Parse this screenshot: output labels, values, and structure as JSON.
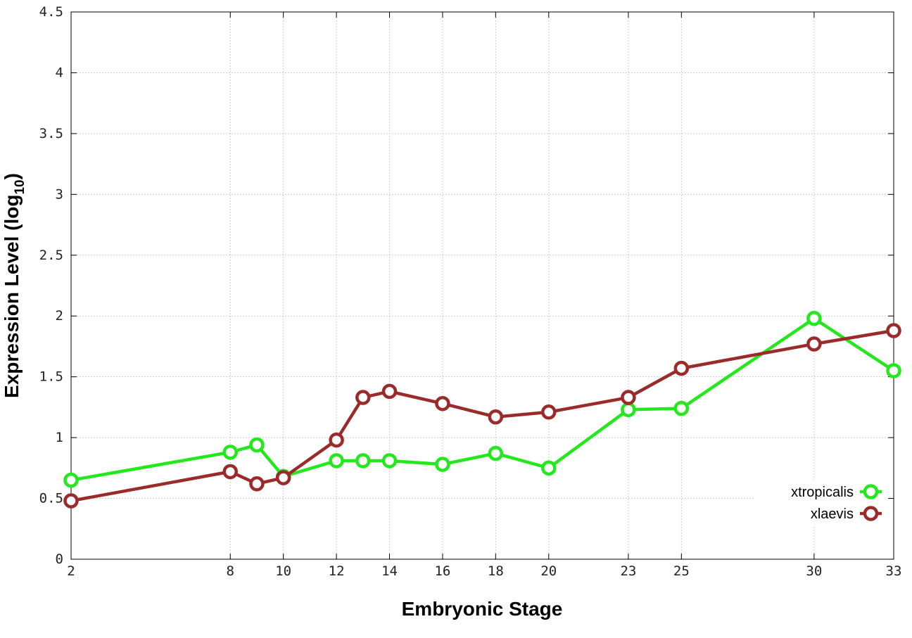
{
  "chart_data": {
    "type": "line",
    "xlabel": "Embryonic Stage",
    "ylabel_main": "Expression Level (log",
    "ylabel_sub": "10",
    "ylabel_close": ")",
    "xlim": [
      2,
      33
    ],
    "ylim": [
      0,
      4.5
    ],
    "x_ticks": [
      2,
      8,
      10,
      12,
      14,
      16,
      18,
      20,
      23,
      25,
      30,
      33
    ],
    "y_ticks": [
      {
        "value": 0,
        "label": "0"
      },
      {
        "value": 0.5,
        "label": "0.5"
      },
      {
        "value": 1,
        "label": "1"
      },
      {
        "value": 1.5,
        "label": "1.5"
      },
      {
        "value": 2,
        "label": "2"
      },
      {
        "value": 2.5,
        "label": "2.5"
      },
      {
        "value": 3,
        "label": "3"
      },
      {
        "value": 3.5,
        "label": "3.5"
      },
      {
        "value": 4,
        "label": "4"
      },
      {
        "value": 4.5,
        "label": "4.5"
      }
    ],
    "grid": true,
    "legend_position": "bottom-right",
    "series": [
      {
        "name": "xtropicalis",
        "color": "#22e81c",
        "x": [
          2,
          8,
          9,
          10,
          12,
          13,
          14,
          16,
          18,
          20,
          23,
          25,
          30,
          33
        ],
        "y": [
          0.65,
          0.88,
          0.94,
          0.68,
          0.81,
          0.81,
          0.81,
          0.78,
          0.87,
          0.75,
          1.23,
          1.24,
          1.98,
          1.55
        ]
      },
      {
        "name": "xlaevis",
        "color": "#9b2a2a",
        "x": [
          2,
          8,
          9,
          10,
          12,
          13,
          14,
          16,
          18,
          20,
          23,
          25,
          30,
          33
        ],
        "y": [
          0.48,
          0.72,
          0.62,
          0.67,
          0.98,
          1.33,
          1.38,
          1.28,
          1.17,
          1.21,
          1.33,
          1.57,
          1.77,
          1.88
        ]
      }
    ]
  }
}
